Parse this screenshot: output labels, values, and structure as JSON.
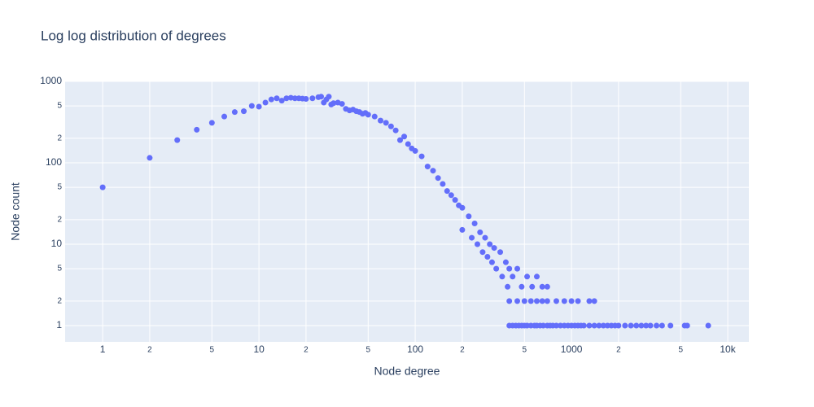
{
  "chart_data": {
    "type": "scatter",
    "title": "Log log distribution of degrees",
    "x_label": "Node degree",
    "y_label": "Node count",
    "log_x": true,
    "log_y": true,
    "grid": true,
    "color": "#636efa",
    "xlim": [
      0.575,
      13650
    ],
    "ylim": [
      0.631,
      1000
    ],
    "xticks": [
      1,
      2,
      5,
      10,
      {
        "value": 20,
        "label": "2"
      },
      {
        "value": 50,
        "label": "5"
      },
      100,
      {
        "value": 200,
        "label": "2"
      },
      {
        "value": 500,
        "label": "5"
      },
      1000,
      {
        "value": 2000,
        "label": "2"
      },
      {
        "value": 5000,
        "label": "5"
      },
      {
        "value": 10000,
        "label": "10k"
      }
    ],
    "yticks": [
      1,
      2,
      5,
      10,
      {
        "value": 20,
        "label": "2"
      },
      {
        "value": 50,
        "label": "5"
      },
      100,
      {
        "value": 200,
        "label": "2"
      },
      {
        "value": 500,
        "label": "5"
      },
      1000
    ],
    "x": [
      1,
      2,
      3,
      4,
      5,
      6,
      7,
      8,
      9,
      10,
      11,
      12,
      13,
      14,
      15,
      16,
      17,
      18,
      19,
      20,
      22,
      24,
      25,
      26,
      27,
      28,
      29,
      30,
      32,
      34,
      36,
      38,
      40,
      42,
      44,
      46,
      48,
      50,
      55,
      60,
      65,
      70,
      75,
      80,
      85,
      90,
      95,
      100,
      110,
      120,
      130,
      140,
      150,
      160,
      170,
      180,
      190,
      200,
      220,
      240,
      260,
      280,
      300,
      320,
      350,
      380,
      400,
      200,
      230,
      250,
      270,
      290,
      310,
      330,
      360,
      390,
      420,
      450,
      480,
      520,
      560,
      600,
      650,
      700,
      400,
      450,
      500,
      550,
      600,
      650,
      700,
      800,
      900,
      1000,
      1100,
      1300,
      1400,
      400,
      420,
      440,
      460,
      480,
      500,
      520,
      550,
      580,
      600,
      630,
      660,
      700,
      730,
      760,
      800,
      850,
      900,
      950,
      1000,
      1050,
      1100,
      1150,
      1200,
      1300,
      1400,
      1500,
      1600,
      1700,
      1800,
      1900,
      2000,
      2200,
      2400,
      2600,
      2800,
      3000,
      3200,
      3500,
      3800,
      4300,
      5300,
      5500,
      7500
    ],
    "values": [
      50,
      115,
      190,
      255,
      310,
      370,
      420,
      430,
      500,
      490,
      550,
      600,
      620,
      580,
      620,
      630,
      620,
      620,
      615,
      610,
      620,
      640,
      650,
      550,
      600,
      650,
      520,
      540,
      550,
      530,
      460,
      440,
      450,
      430,
      420,
      400,
      410,
      390,
      370,
      330,
      310,
      280,
      250,
      190,
      210,
      170,
      150,
      140,
      120,
      90,
      80,
      65,
      55,
      45,
      40,
      35,
      30,
      28,
      22,
      18,
      14,
      12,
      10,
      9,
      8,
      6,
      5,
      15,
      12,
      10,
      8,
      7,
      6,
      5,
      4,
      3,
      4,
      5,
      3,
      4,
      3,
      4,
      3,
      3,
      2,
      2,
      2,
      2,
      2,
      2,
      2,
      2,
      2,
      2,
      2,
      2,
      2,
      1,
      1,
      1,
      1,
      1,
      1,
      1,
      1,
      1,
      1,
      1,
      1,
      1,
      1,
      1,
      1,
      1,
      1,
      1,
      1,
      1,
      1,
      1,
      1,
      1,
      1,
      1,
      1,
      1,
      1,
      1,
      1,
      1,
      1,
      1,
      1,
      1,
      1,
      1,
      1,
      1,
      1,
      1,
      1
    ]
  }
}
